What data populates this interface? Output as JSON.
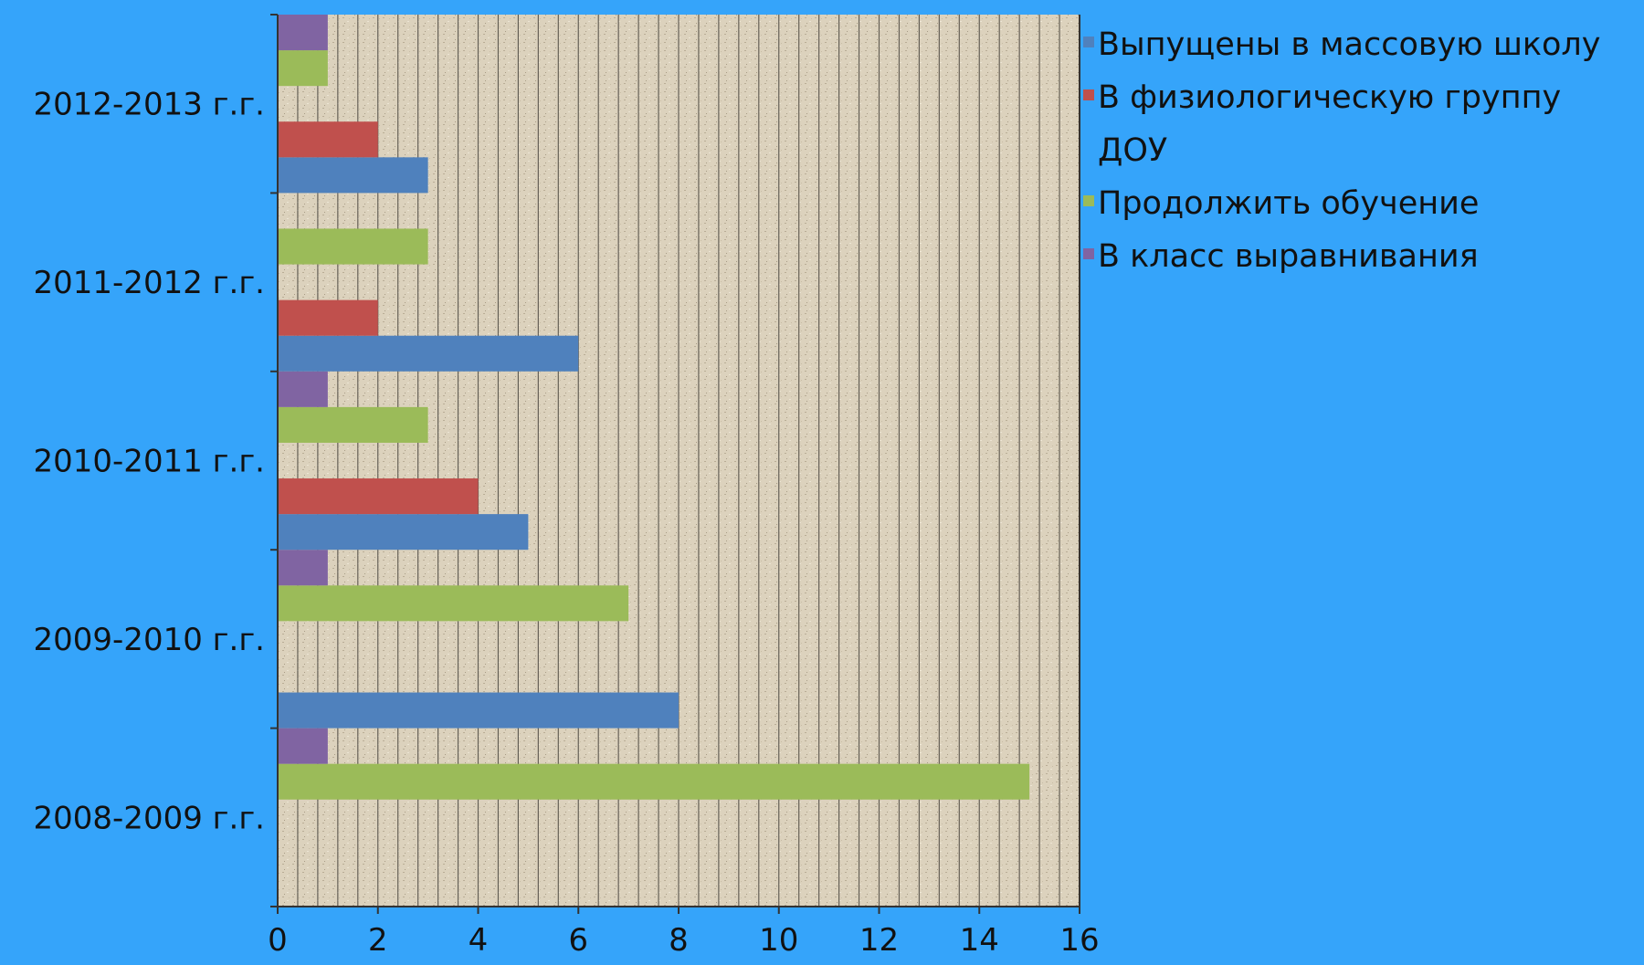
{
  "colors": {
    "background": "#35a4fa",
    "plot_area": "#dcd2bd",
    "grid": "#3b3731",
    "axis": "#333333"
  },
  "chart_data": {
    "type": "bar",
    "orientation": "horizontal",
    "categories": [
      "2008-2009 г.г.",
      "2009-2010 г.г.",
      "2010-2011 г.г.",
      "2011-2012 г.г.",
      "2012-2013 г.г."
    ],
    "series": [
      {
        "name": "Выпущены в массовую школу",
        "color": "#4f81bd",
        "values": [
          0,
          8,
          5,
          6,
          3
        ]
      },
      {
        "name": "В физиологическую группу",
        "color": "#c0504d",
        "values": [
          0,
          0,
          4,
          2,
          2
        ]
      },
      {
        "name": "ДОУ",
        "color": "#e8e8e8",
        "values": [
          0,
          0,
          0,
          0,
          0
        ]
      },
      {
        "name": "Продолжить обучение",
        "color": "#9bbb59",
        "values": [
          15,
          7,
          3,
          3,
          1
        ]
      },
      {
        "name": "В класс выравнивания",
        "color": "#8064a2",
        "values": [
          1,
          1,
          1,
          0,
          1
        ]
      }
    ],
    "xlim": [
      0,
      16
    ],
    "xticks": [
      0,
      2,
      4,
      6,
      8,
      10,
      12,
      14,
      16
    ],
    "grid": true,
    "legend_position": "right"
  }
}
